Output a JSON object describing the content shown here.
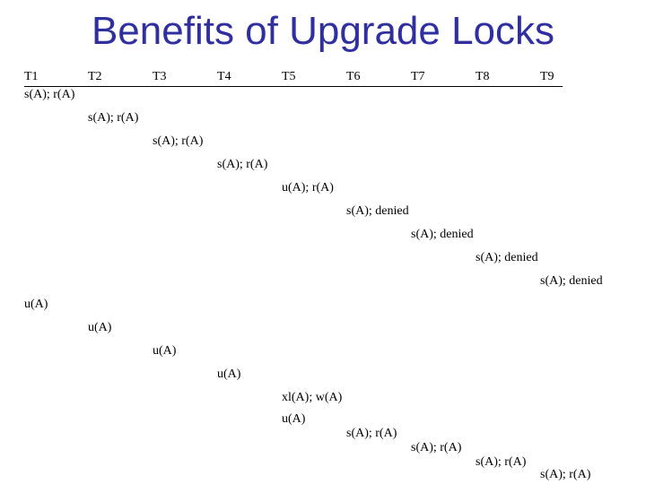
{
  "title": "Benefits of Upgrade Locks",
  "transactions": [
    "T1",
    "T2",
    "T3",
    "T4",
    "T5",
    "T6",
    "T7",
    "T8",
    "T9"
  ],
  "operations": [
    {
      "tx": 0,
      "text": "s(A); r(A)"
    },
    {
      "tx": 1,
      "text": "s(A); r(A)"
    },
    {
      "tx": 2,
      "text": "s(A); r(A)"
    },
    {
      "tx": 3,
      "text": "s(A); r(A)"
    },
    {
      "tx": 4,
      "text": "u(A); r(A)"
    },
    {
      "tx": 5,
      "text": "s(A); denied"
    },
    {
      "tx": 6,
      "text": "s(A); denied"
    },
    {
      "tx": 7,
      "text": "s(A); denied"
    },
    {
      "tx": 8,
      "text": "s(A); denied"
    },
    {
      "tx": 0,
      "text": "u(A)"
    },
    {
      "tx": 1,
      "text": "u(A)"
    },
    {
      "tx": 2,
      "text": "u(A)"
    },
    {
      "tx": 3,
      "text": "u(A)"
    },
    {
      "tx": 4,
      "text": "xl(A); w(A)"
    },
    {
      "tx": 4,
      "text": "u(A)"
    },
    {
      "tx": 5,
      "text": "s(A); r(A)"
    },
    {
      "tx": 6,
      "text": "s(A); r(A)"
    },
    {
      "tx": 7,
      "text": "s(A); r(A)"
    },
    {
      "tx": 8,
      "text": "s(A); r(A)"
    }
  ]
}
